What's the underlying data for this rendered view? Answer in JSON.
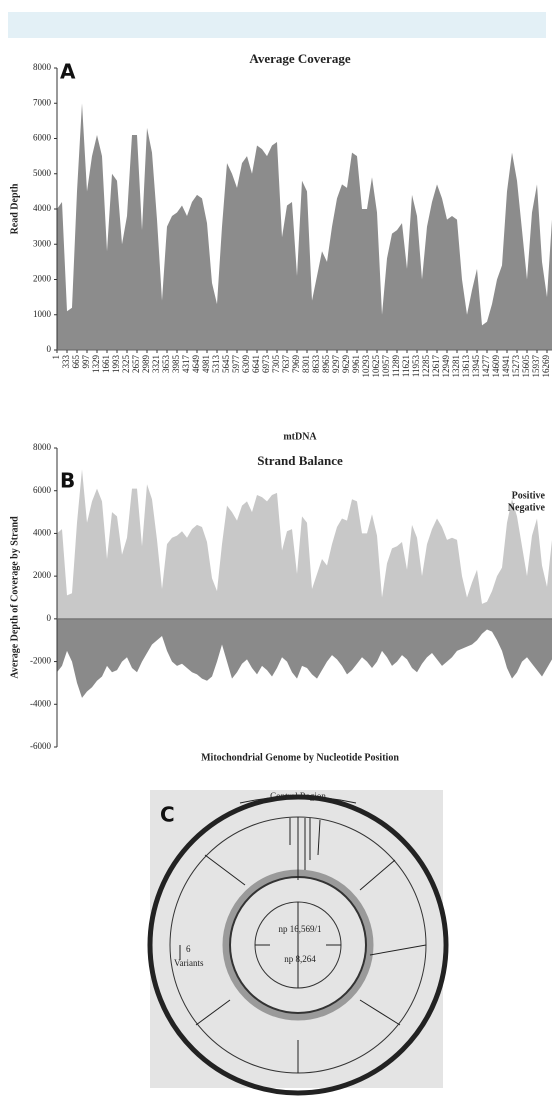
{
  "chart_data": [
    {
      "type": "area",
      "panel_label": "A",
      "title": "Average Coverage",
      "x_label": "mtDNA",
      "y_label": "Read Depth",
      "color": "#8c8c8c",
      "xlim": [
        1,
        16435
      ],
      "ylim": [
        0,
        8000
      ],
      "yticks": [
        0,
        1000,
        2000,
        3000,
        4000,
        5000,
        6000,
        7000,
        8000
      ],
      "xticks": [
        1,
        333,
        665,
        997,
        1329,
        1661,
        1993,
        2325,
        2657,
        2989,
        3321,
        3653,
        3985,
        4317,
        4649,
        4981,
        5313,
        5645,
        5977,
        6309,
        6641,
        6973,
        7305,
        7637,
        7969,
        8301,
        8633,
        8965,
        9297,
        9629,
        9961,
        10293,
        10625,
        10957,
        11289,
        11621,
        11953,
        12285,
        12617,
        12949,
        13281,
        13613,
        13945,
        14277,
        14609,
        14941,
        15273,
        15605,
        15937,
        16269
      ],
      "x": [
        1,
        167,
        333,
        499,
        665,
        831,
        997,
        1163,
        1329,
        1495,
        1661,
        1827,
        1993,
        2159,
        2325,
        2491,
        2657,
        2823,
        2989,
        3155,
        3321,
        3487,
        3653,
        3819,
        3985,
        4151,
        4317,
        4483,
        4649,
        4815,
        4981,
        5147,
        5313,
        5479,
        5645,
        5811,
        5977,
        6143,
        6309,
        6475,
        6641,
        6807,
        6973,
        7139,
        7305,
        7471,
        7637,
        7803,
        7969,
        8135,
        8301,
        8467,
        8633,
        8799,
        8965,
        9131,
        9297,
        9463,
        9629,
        9795,
        9961,
        10127,
        10293,
        10459,
        10625,
        10791,
        10957,
        11123,
        11289,
        11455,
        11621,
        11787,
        11953,
        12119,
        12285,
        12451,
        12617,
        12783,
        12949,
        13115,
        13281,
        13447,
        13613,
        13779,
        13945,
        14111,
        14277,
        14443,
        14609,
        14775,
        14941,
        15107,
        15273,
        15439,
        15605,
        15771,
        15937,
        16103,
        16269,
        16435
      ],
      "values": [
        4000,
        4200,
        1100,
        1200,
        4500,
        7000,
        4500,
        5500,
        6100,
        5500,
        2800,
        5000,
        4800,
        3000,
        3800,
        6100,
        6100,
        3400,
        6300,
        5600,
        3700,
        1400,
        3500,
        3800,
        3900,
        4100,
        3800,
        4200,
        4400,
        4300,
        3600,
        1900,
        1300,
        3500,
        5300,
        5000,
        4600,
        5300,
        5500,
        5000,
        5800,
        5700,
        5500,
        5800,
        5900,
        3200,
        4100,
        4200,
        2100,
        4800,
        4500,
        1400,
        2100,
        2800,
        2500,
        3500,
        4300,
        4700,
        4600,
        5600,
        5500,
        4000,
        4000,
        4900,
        3900,
        1000,
        2600,
        3300,
        3400,
        3600,
        2300,
        4400,
        3800,
        2000,
        3500,
        4200,
        4700,
        4300,
        3700,
        3800,
        3700,
        2000,
        1000,
        1700,
        2300,
        700,
        800,
        1300,
        2000,
        2400,
        4500,
        5600,
        4800,
        3400,
        2000,
        3900,
        4700,
        2500,
        1500,
        3700
      ]
    },
    {
      "type": "area",
      "panel_label": "B",
      "title": "Strand Balance",
      "x_label": "Mitochondrial Genome by Nucleotide Position",
      "y_label": "Average Depth of Coverage by Strand",
      "xlim": [
        1,
        16435
      ],
      "ylim": [
        -6000,
        8000
      ],
      "yticks": [
        -6000,
        -4000,
        -2000,
        0,
        2000,
        4000,
        6000,
        8000
      ],
      "x": [
        1,
        167,
        333,
        499,
        665,
        831,
        997,
        1163,
        1329,
        1495,
        1661,
        1827,
        1993,
        2159,
        2325,
        2491,
        2657,
        2823,
        2989,
        3155,
        3321,
        3487,
        3653,
        3819,
        3985,
        4151,
        4317,
        4483,
        4649,
        4815,
        4981,
        5147,
        5313,
        5479,
        5645,
        5811,
        5977,
        6143,
        6309,
        6475,
        6641,
        6807,
        6973,
        7139,
        7305,
        7471,
        7637,
        7803,
        7969,
        8135,
        8301,
        8467,
        8633,
        8799,
        8965,
        9131,
        9297,
        9463,
        9629,
        9795,
        9961,
        10127,
        10293,
        10459,
        10625,
        10791,
        10957,
        11123,
        11289,
        11455,
        11621,
        11787,
        11953,
        12119,
        12285,
        12451,
        12617,
        12783,
        12949,
        13115,
        13281,
        13447,
        13613,
        13779,
        13945,
        14111,
        14277,
        14443,
        14609,
        14775,
        14941,
        15107,
        15273,
        15439,
        15605,
        15771,
        15937,
        16103,
        16269,
        16435
      ],
      "series": [
        {
          "name": "Positive",
          "color": "#c8c8c8",
          "values": [
            4000,
            4200,
            1100,
            1200,
            4500,
            7000,
            4500,
            5500,
            6100,
            5500,
            2800,
            5000,
            4800,
            3000,
            3800,
            6100,
            6100,
            3400,
            6300,
            5600,
            3700,
            1400,
            3500,
            3800,
            3900,
            4100,
            3800,
            4200,
            4400,
            4300,
            3600,
            1900,
            1300,
            3500,
            5300,
            5000,
            4600,
            5300,
            5500,
            5000,
            5800,
            5700,
            5500,
            5800,
            5900,
            3200,
            4100,
            4200,
            2100,
            4800,
            4500,
            1400,
            2100,
            2800,
            2500,
            3500,
            4300,
            4700,
            4600,
            5600,
            5500,
            4000,
            4000,
            4900,
            3900,
            1000,
            2600,
            3300,
            3400,
            3600,
            2300,
            4400,
            3800,
            2000,
            3500,
            4200,
            4700,
            4300,
            3700,
            3800,
            3700,
            2000,
            1000,
            1700,
            2300,
            700,
            800,
            1300,
            2000,
            2400,
            4500,
            5600,
            4800,
            3400,
            2000,
            3900,
            4700,
            2500,
            1500,
            3700
          ]
        },
        {
          "name": "Negative",
          "color": "#8a8a8a",
          "values": [
            -2500,
            -2200,
            -1500,
            -2000,
            -3000,
            -3700,
            -3400,
            -3200,
            -2900,
            -2700,
            -2200,
            -2500,
            -2400,
            -2000,
            -1800,
            -2300,
            -2500,
            -2000,
            -1600,
            -1200,
            -1000,
            -800,
            -1500,
            -2000,
            -2200,
            -2100,
            -2300,
            -2500,
            -2600,
            -2800,
            -2900,
            -2700,
            -2000,
            -1200,
            -2000,
            -2800,
            -2500,
            -2100,
            -1900,
            -2300,
            -2600,
            -2200,
            -2400,
            -2700,
            -2300,
            -1800,
            -2000,
            -2500,
            -2800,
            -2200,
            -2300,
            -2600,
            -2800,
            -2400,
            -2000,
            -1700,
            -1900,
            -2200,
            -2600,
            -2400,
            -2100,
            -1800,
            -2000,
            -2300,
            -2000,
            -1500,
            -1800,
            -2200,
            -2000,
            -1700,
            -1900,
            -2300,
            -2500,
            -2100,
            -1800,
            -1600,
            -1900,
            -2200,
            -2000,
            -1800,
            -1500,
            -1400,
            -1300,
            -1200,
            -1000,
            -700,
            -500,
            -600,
            -1000,
            -1500,
            -2300,
            -2800,
            -2500,
            -2000,
            -1800,
            -2100,
            -2400,
            -2700,
            -2300,
            -1900
          ]
        }
      ]
    }
  ],
  "diagram": {
    "panel_label": "C",
    "region_label": "Control Region",
    "top_label": "np 16,569/1",
    "bottom_label": "np 8,264",
    "scale_value": "6",
    "scale_label": "Variants"
  }
}
